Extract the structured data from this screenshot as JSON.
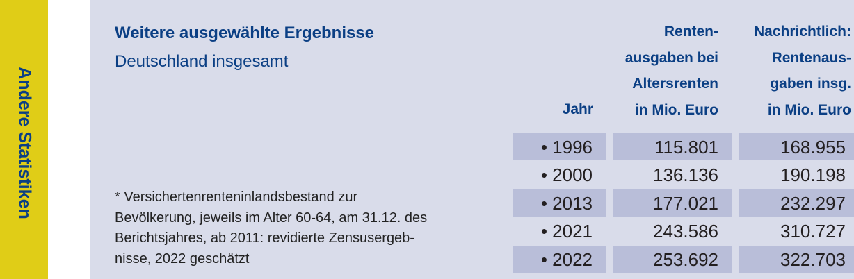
{
  "sidebar": {
    "label": "Andere Statistiken"
  },
  "header": {
    "title": "Weitere ausgewählte Ergebnisse",
    "subtitle": "Deutschland insgesamt"
  },
  "table": {
    "columns": [
      {
        "lines": [
          "Jahr"
        ]
      },
      {
        "lines": [
          "Renten-",
          "ausgaben bei",
          "Altersrenten",
          "in Mio. Euro"
        ]
      },
      {
        "lines": [
          "Nachrichtlich:",
          "Rentenaus-",
          "gaben insg.",
          "in Mio. Euro"
        ]
      }
    ],
    "rows": [
      {
        "year": "• 1996",
        "altersrenten": "115.801",
        "insgesamt": "168.955"
      },
      {
        "year": "• 2000",
        "altersrenten": "136.136",
        "insgesamt": "190.198"
      },
      {
        "year": "• 2013",
        "altersrenten": "177.021",
        "insgesamt": "232.297"
      },
      {
        "year": "• 2021",
        "altersrenten": "243.586",
        "insgesamt": "310.727"
      },
      {
        "year": "• 2022",
        "altersrenten": "253.692",
        "insgesamt": "322.703"
      }
    ],
    "colors": {
      "shaded_row": "#b9bed9",
      "background": "#d9dcea",
      "accent": "#0b3f84",
      "sidebar": "#e0cd17"
    }
  },
  "footnote": {
    "lines": [
      "* Versichertenrenteninlandsbestand zur",
      "Bevölkerung, jeweils im Alter 60-64, am 31.12. des",
      "Berichtsjahres, ab 2011: revidierte Zensusergeb-",
      "nisse, 2022 geschätzt"
    ]
  }
}
